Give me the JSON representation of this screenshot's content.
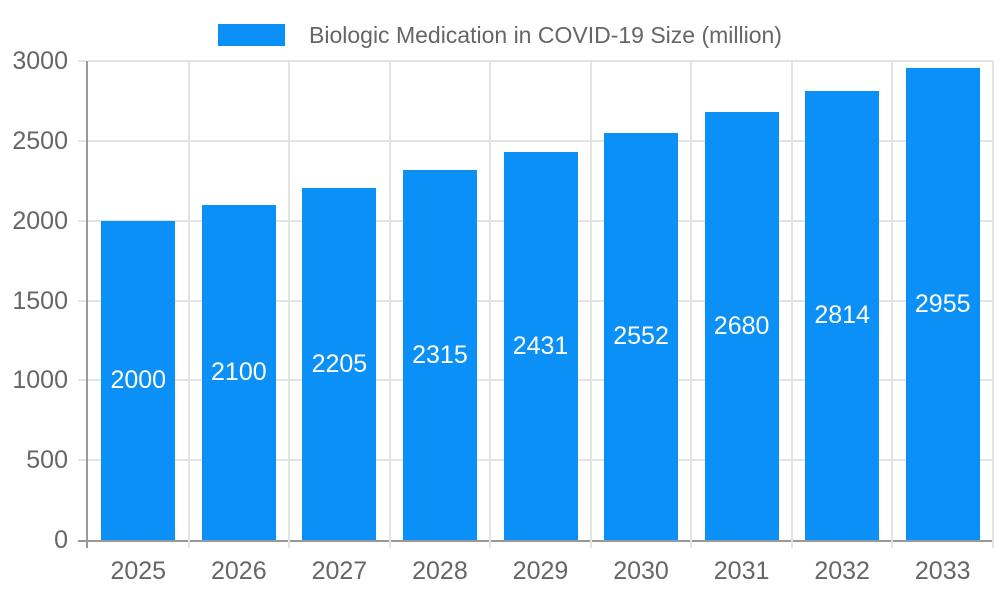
{
  "chart_data": {
    "type": "bar",
    "title": "",
    "legend": "Biologic Medication in COVID-19 Size (million)",
    "legend_position": "top-center",
    "categories": [
      "2025",
      "2026",
      "2027",
      "2028",
      "2029",
      "2030",
      "2031",
      "2032",
      "2033"
    ],
    "values": [
      2000,
      2100,
      2205,
      2315,
      2431,
      2552,
      2680,
      2814,
      2955
    ],
    "bar_value_labels": [
      "2000",
      "2100",
      "2205",
      "2315",
      "2431",
      "2552",
      "2680",
      "2814",
      "2955"
    ],
    "xlabel": "",
    "ylabel": "",
    "ylim": [
      0,
      3000
    ],
    "yticks": [
      0,
      500,
      1000,
      1500,
      2000,
      2500,
      3000
    ],
    "grid": true,
    "colors": {
      "bar": "#0a90f6",
      "bar_label": "#ffffff",
      "axis_text": "#666666",
      "legend_text": "#666666",
      "axis_line": "#999999",
      "grid_line": "#e3e3e3",
      "background": "#ffffff"
    }
  }
}
